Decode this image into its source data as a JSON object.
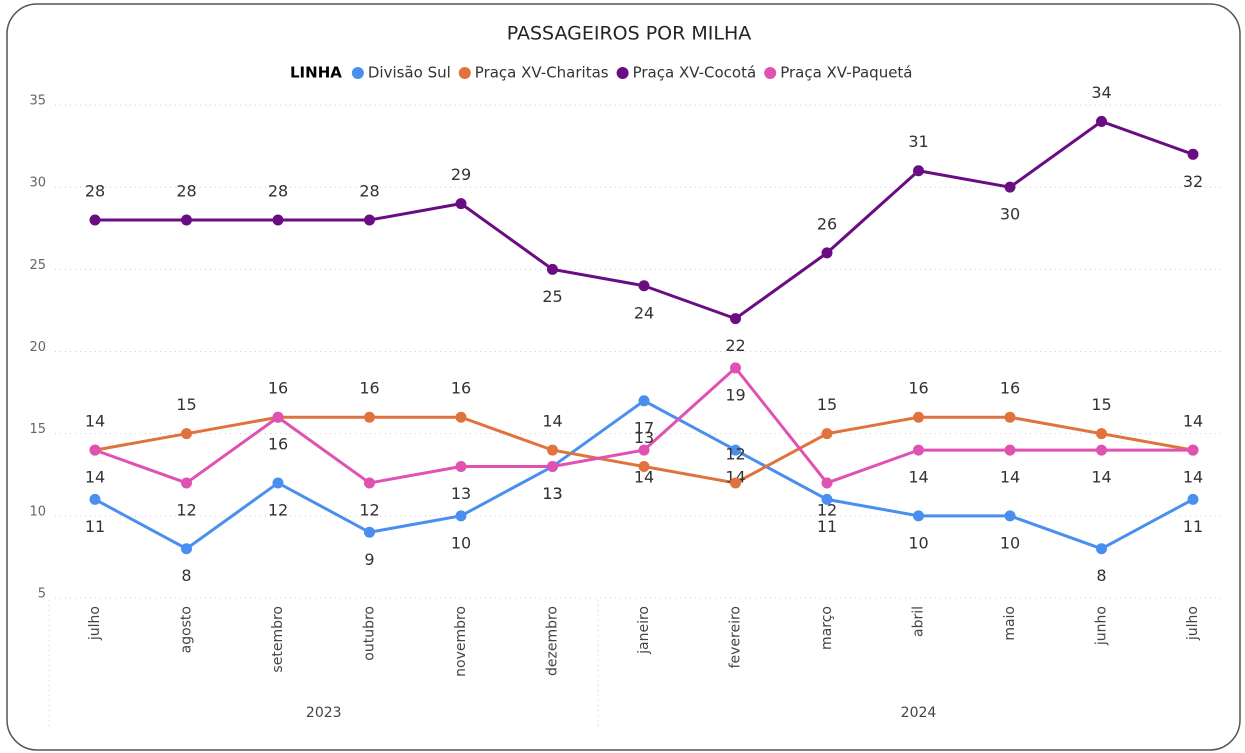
{
  "chart_data": {
    "type": "line",
    "title": "PASSAGEIROS POR MILHA",
    "legend_title": "LINHA",
    "groups": [
      {
        "name": "2023",
        "categories": [
          "julho",
          "agosto",
          "setembro",
          "outubro",
          "novembro",
          "dezembro"
        ]
      },
      {
        "name": "2024",
        "categories": [
          "janeiro",
          "fevereiro",
          "março",
          "abril",
          "maio",
          "junho",
          "julho"
        ]
      }
    ],
    "series": [
      {
        "name": "Divisão Sul",
        "color": "#4a8ff0",
        "values": [
          11,
          8,
          12,
          9,
          10,
          13,
          17,
          14,
          11,
          10,
          10,
          8,
          11
        ]
      },
      {
        "name": "Praça XV-Charitas",
        "color": "#e0733d",
        "values": [
          14,
          15,
          16,
          16,
          16,
          14,
          13,
          12,
          15,
          16,
          16,
          15,
          14
        ]
      },
      {
        "name": "Praça XV-Cocotá",
        "color": "#6a0d83",
        "values": [
          28,
          28,
          28,
          28,
          29,
          25,
          24,
          22,
          26,
          31,
          30,
          34,
          32
        ]
      },
      {
        "name": "Praça XV-Paquetá",
        "color": "#e052b2",
        "values": [
          14,
          12,
          16,
          12,
          13,
          13,
          14,
          19,
          12,
          14,
          14,
          14,
          14
        ]
      }
    ],
    "ylim": [
      5,
      35
    ],
    "yticks": [
      5,
      10,
      15,
      20,
      25,
      30,
      35
    ],
    "grid": true
  }
}
